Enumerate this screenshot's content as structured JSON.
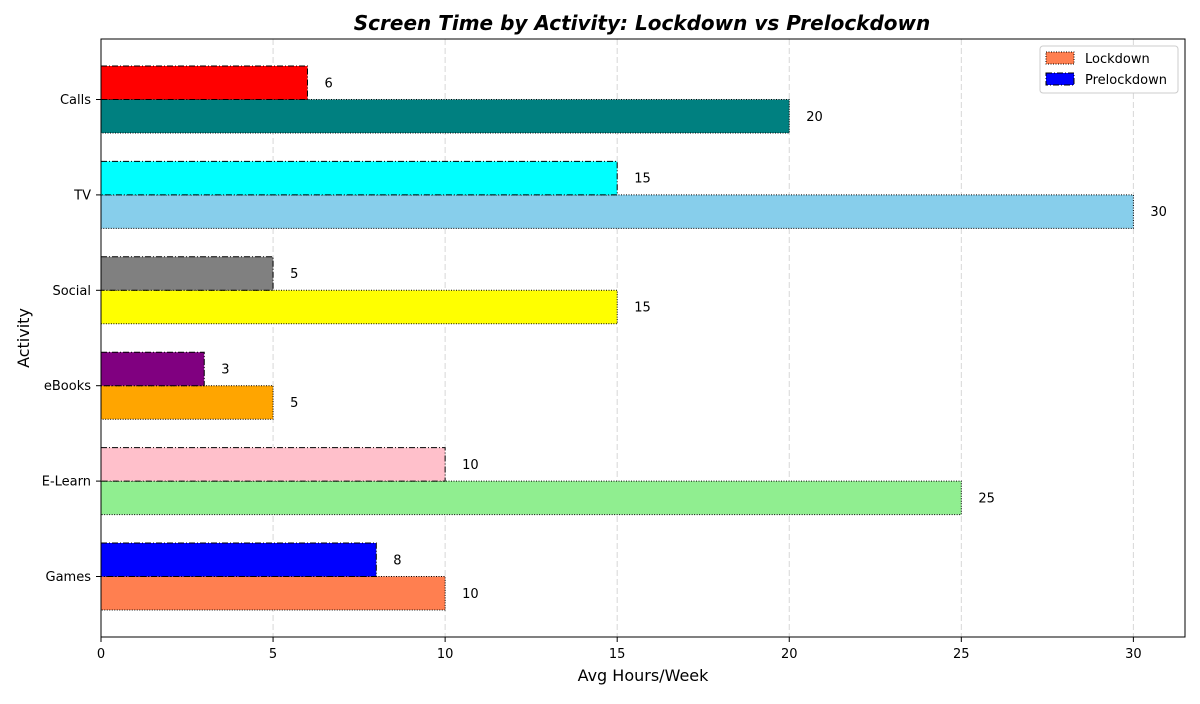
{
  "chart_data": {
    "type": "bar",
    "orientation": "horizontal",
    "title": "Screen Time by Activity: Lockdown vs Prelockdown",
    "xlabel": "Avg Hours/Week",
    "ylabel": "Activity",
    "categories": [
      "Games",
      "E-Learn",
      "eBooks",
      "Social",
      "TV",
      "Calls"
    ],
    "xlim": [
      0,
      31.5
    ],
    "xticks": [
      0,
      5,
      10,
      15,
      20,
      25,
      30
    ],
    "grid": "x-dashed",
    "legend_position": "top-right",
    "series": [
      {
        "name": "Lockdown",
        "legend_color": "#ff7f50",
        "values": [
          10,
          25,
          5,
          15,
          30,
          20
        ],
        "colors": [
          "#ff7f50",
          "#90ee90",
          "#ffa500",
          "#ffff00",
          "#87ceeb",
          "#008080"
        ],
        "edge_style": "dotted"
      },
      {
        "name": "Prelockdown",
        "legend_color": "#0000ff",
        "values": [
          8,
          10,
          3,
          5,
          15,
          6
        ],
        "colors": [
          "#0000ff",
          "#ffc0cb",
          "#800080",
          "#808080",
          "#00ffff",
          "#ff0000"
        ],
        "edge_style": "dashdot"
      }
    ]
  }
}
